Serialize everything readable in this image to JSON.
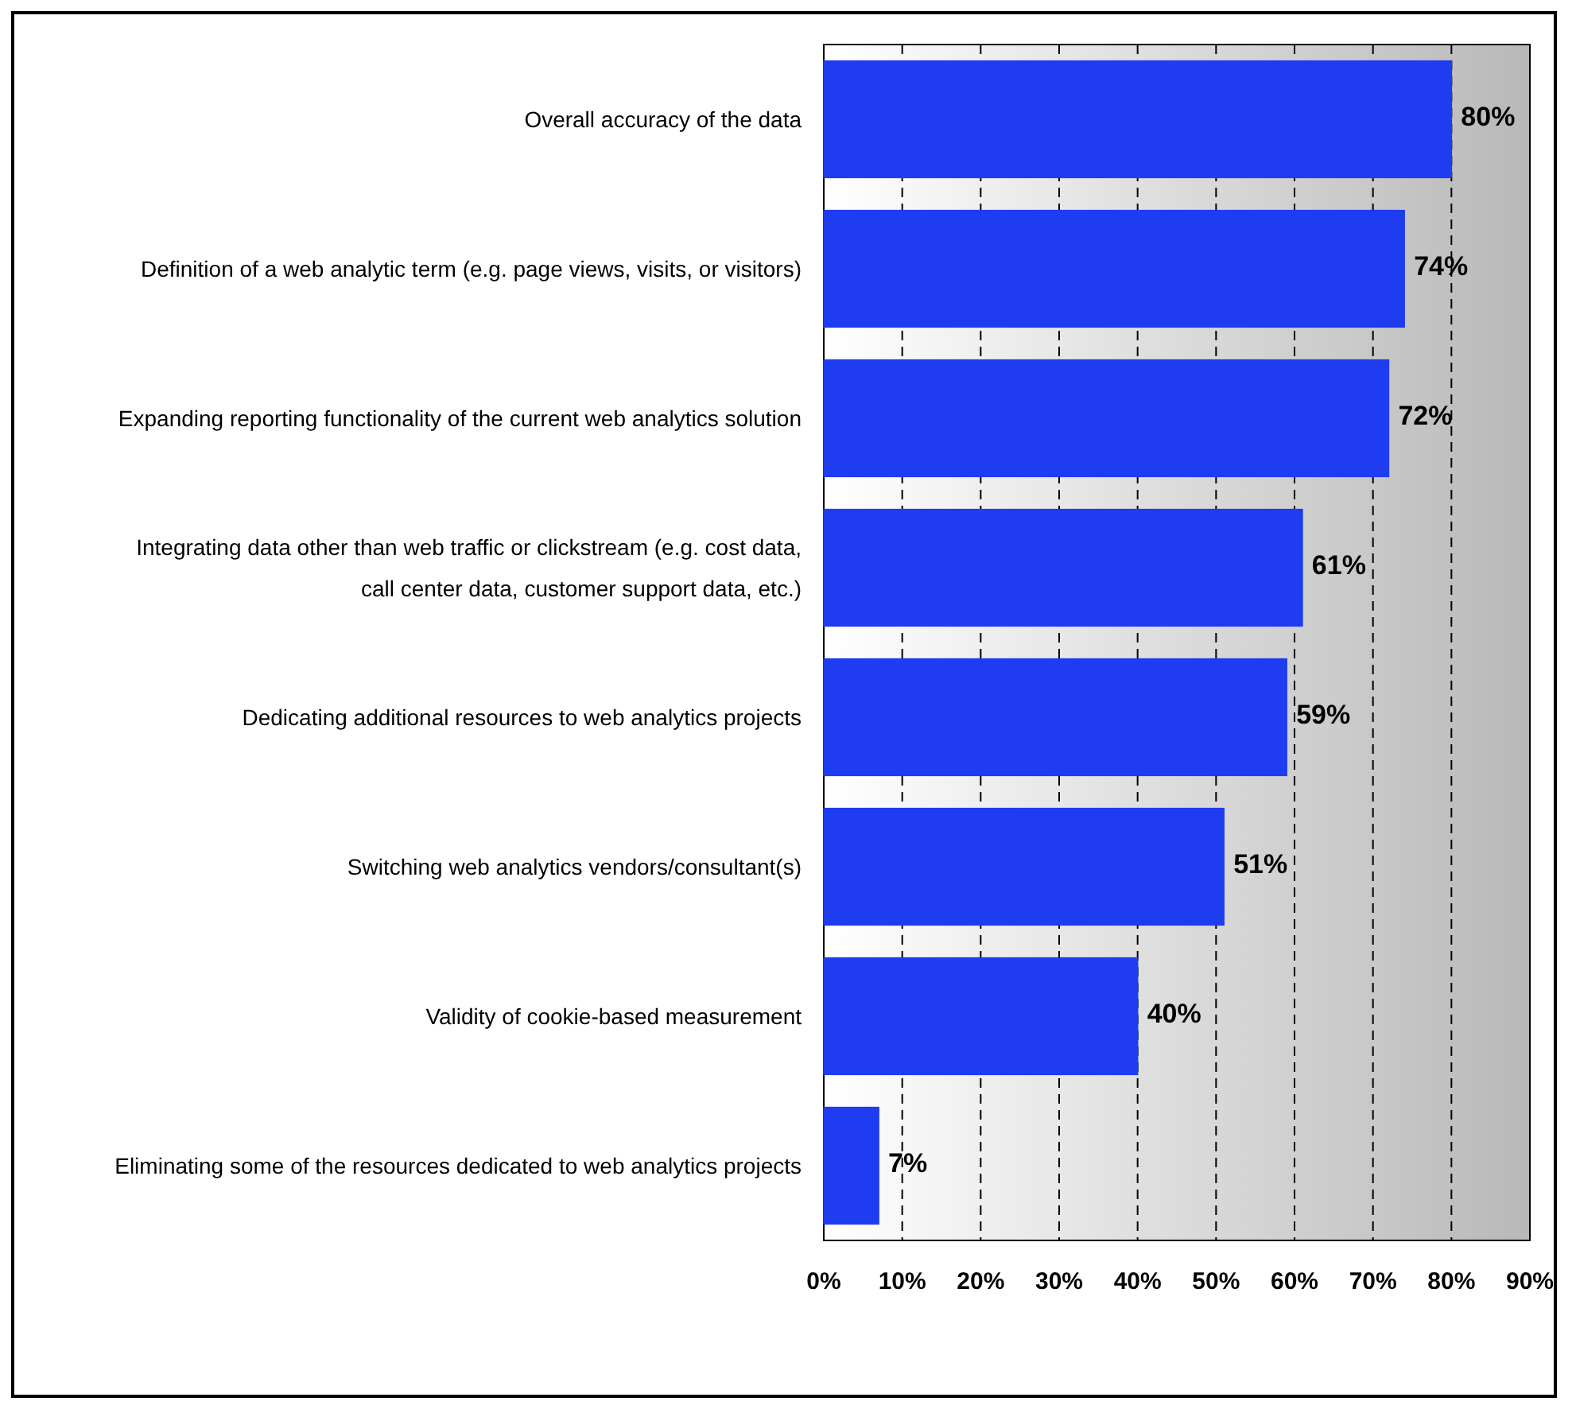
{
  "chart_data": {
    "type": "bar",
    "orientation": "horizontal",
    "categories": [
      "Overall accuracy of the data",
      "Definition of a web analytic term (e.g. page views, visits, or visitors)",
      "Expanding reporting functionality of the current web analytics solution",
      "Integrating data other than web traffic or clickstream (e.g. cost data, call center data,  customer support data, etc.)",
      "Dedicating additional resources to web analytics projects",
      "Switching web analytics vendors/consultant(s)",
      "Validity of cookie-based measurement",
      "Eliminating some of the resources dedicated to web analytics projects"
    ],
    "values": [
      80,
      74,
      72,
      61,
      59,
      51,
      40,
      7
    ],
    "value_labels": [
      "80%",
      "74%",
      "72%",
      "61%",
      "59%",
      "51%",
      "40%",
      "7%"
    ],
    "color": "#1f3cf0",
    "xlim": [
      0,
      90
    ],
    "xticks": [
      {
        "value": 0,
        "label": "0%"
      },
      {
        "value": 10,
        "label": "10%"
      },
      {
        "value": 20,
        "label": "20%"
      },
      {
        "value": 30,
        "label": "30%"
      },
      {
        "value": 40,
        "label": "40%"
      },
      {
        "value": 50,
        "label": "50%"
      },
      {
        "value": 60,
        "label": "60%"
      },
      {
        "value": 70,
        "label": "70%"
      },
      {
        "value": 80,
        "label": "80%"
      },
      {
        "value": 90,
        "label": "90%"
      }
    ],
    "grid": "x"
  }
}
